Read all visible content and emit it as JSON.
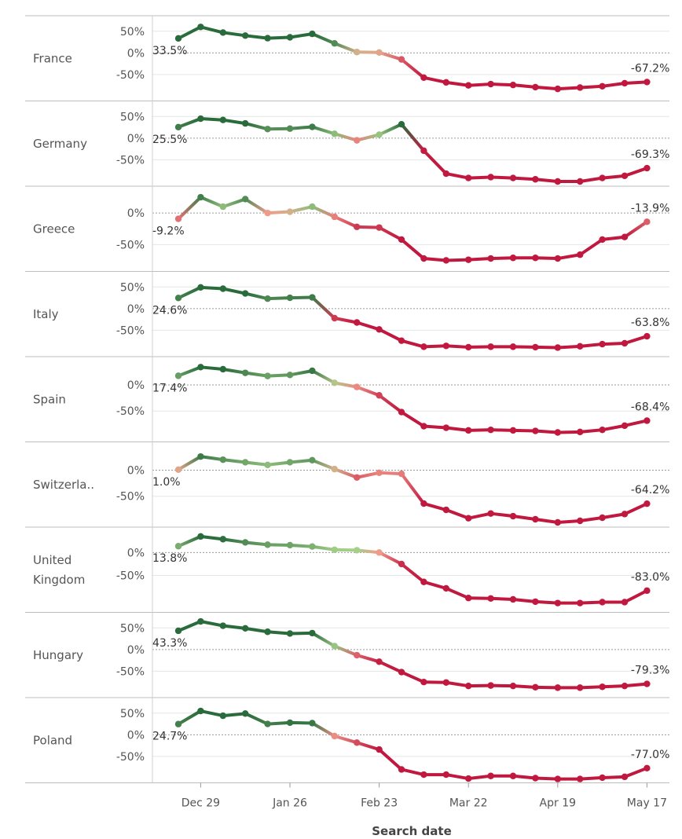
{
  "chart_data": {
    "type": "line",
    "xlabel": "Search date",
    "x_ticks": [
      "Dec 29",
      "Jan 26",
      "Feb 23",
      "Mar 22",
      "Apr 19",
      "May 17"
    ],
    "x_tick_index": [
      1,
      5,
      9,
      13,
      17,
      21
    ],
    "color_scale": {
      "negative": "#c0183f",
      "neutral": "#f09a8a",
      "low_positive": "#a6d08a",
      "positive": "#2a6b3c"
    },
    "grid": true,
    "panels": [
      {
        "name": "France",
        "ticks": [
          {
            "v": 50,
            "label": "50%"
          },
          {
            "v": 0,
            "label": "0%"
          },
          {
            "v": -50,
            "label": "-50%"
          }
        ],
        "ylim": [
          -100,
          75
        ],
        "first_label": "33.5%",
        "last_label": "-67.2%",
        "values": [
          33.5,
          60,
          47,
          40,
          34,
          36,
          44,
          22,
          2,
          1,
          -15,
          -57,
          -68,
          -75,
          -72,
          -74,
          -79,
          -83,
          -80,
          -77,
          -70,
          -67.2
        ]
      },
      {
        "name": "Germany",
        "ticks": [
          {
            "v": 50,
            "label": "50%"
          },
          {
            "v": 0,
            "label": "0%"
          },
          {
            "v": -50,
            "label": "-50%"
          }
        ],
        "ylim": [
          -100,
          75
        ],
        "first_label": "25.5%",
        "last_label": "-69.3%",
        "values": [
          25.5,
          45,
          42,
          34,
          21,
          22,
          26,
          10,
          -5,
          8,
          32,
          -29,
          -82,
          -92,
          -90,
          -92,
          -95,
          -100,
          -100,
          -92,
          -87,
          -69.3
        ]
      },
      {
        "name": "Greece",
        "ticks": [
          {
            "v": 0,
            "label": "0%"
          },
          {
            "v": -50,
            "label": "-50%"
          }
        ],
        "ylim": [
          -85,
          35
        ],
        "first_label": "-9.2%",
        "last_label": "-13.9%",
        "values": [
          -9.2,
          25,
          10,
          22,
          0,
          2,
          10,
          -6,
          -22,
          -23,
          -42,
          -72,
          -75,
          -74,
          -72,
          -71,
          -71,
          -72,
          -66,
          -42,
          -38,
          -13.9
        ]
      },
      {
        "name": "Italy",
        "ticks": [
          {
            "v": 50,
            "label": "50%"
          },
          {
            "v": 0,
            "label": "0%"
          },
          {
            "v": -50,
            "label": "-50%"
          }
        ],
        "ylim": [
          -100,
          75
        ],
        "first_label": "24.6%",
        "last_label": "-63.8%",
        "values": [
          24.6,
          49,
          46,
          35,
          23,
          25,
          26,
          -22,
          -32,
          -48,
          -74,
          -88,
          -86,
          -89,
          -88,
          -88,
          -89,
          -90,
          -87,
          -82,
          -80,
          -63.8
        ]
      },
      {
        "name": "Spain",
        "ticks": [
          {
            "v": 0,
            "label": "0%"
          },
          {
            "v": -50,
            "label": "-50%"
          }
        ],
        "ylim": [
          -100,
          45
        ],
        "first_label": "17.4%",
        "last_label": "-68.4%",
        "values": [
          17.4,
          34,
          30,
          23,
          17,
          19,
          27,
          4,
          -4,
          -20,
          -52,
          -79,
          -82,
          -87,
          -86,
          -87,
          -88,
          -91,
          -90,
          -86,
          -78,
          -68.4
        ]
      },
      {
        "name": "Switzerla..",
        "ticks": [
          {
            "v": 0,
            "label": "0%"
          },
          {
            "v": -50,
            "label": "-50%"
          }
        ],
        "ylim": [
          -100,
          45
        ],
        "first_label": "1.0%",
        "last_label": "-64.2%",
        "values": [
          1.0,
          26,
          20,
          15,
          10,
          15,
          19,
          2,
          -14,
          -5,
          -7,
          -64,
          -76,
          -92,
          -83,
          -88,
          -94,
          -100,
          -97,
          -91,
          -84,
          -64.2
        ]
      },
      {
        "name": "United\nKingdom",
        "ticks": [
          {
            "v": 0,
            "label": "0%"
          },
          {
            "v": -50,
            "label": "-50%"
          }
        ],
        "ylim": [
          -120,
          45
        ],
        "first_label": "13.8%",
        "last_label": "-83.0%",
        "values": [
          13.8,
          35,
          29,
          22,
          17,
          16,
          13,
          6,
          5,
          0,
          -25,
          -64,
          -78,
          -99,
          -100,
          -102,
          -107,
          -110,
          -110,
          -108,
          -108,
          -83.0
        ]
      },
      {
        "name": "Hungary",
        "ticks": [
          {
            "v": 50,
            "label": "50%"
          },
          {
            "v": 0,
            "label": "0%"
          },
          {
            "v": -50,
            "label": "-50%"
          }
        ],
        "ylim": [
          -100,
          75
        ],
        "first_label": "43.3%",
        "last_label": "-79.3%",
        "values": [
          43.3,
          65,
          55,
          49,
          41,
          37,
          38,
          8,
          -13,
          -28,
          -52,
          -75,
          -76,
          -84,
          -83,
          -84,
          -87,
          -88,
          -88,
          -86,
          -84,
          -79.3
        ]
      },
      {
        "name": "Poland",
        "ticks": [
          {
            "v": 50,
            "label": "50%"
          },
          {
            "v": 0,
            "label": "0%"
          },
          {
            "v": -50,
            "label": "-50%"
          }
        ],
        "ylim": [
          -100,
          75
        ],
        "first_label": "24.7%",
        "last_label": "-77.0%",
        "values": [
          24.7,
          55,
          44,
          49,
          25,
          28,
          27,
          -3,
          -18,
          -34,
          -80,
          -92,
          -92,
          -101,
          -95,
          -95,
          -100,
          -102,
          -102,
          -99,
          -97,
          -77.0
        ]
      }
    ]
  }
}
